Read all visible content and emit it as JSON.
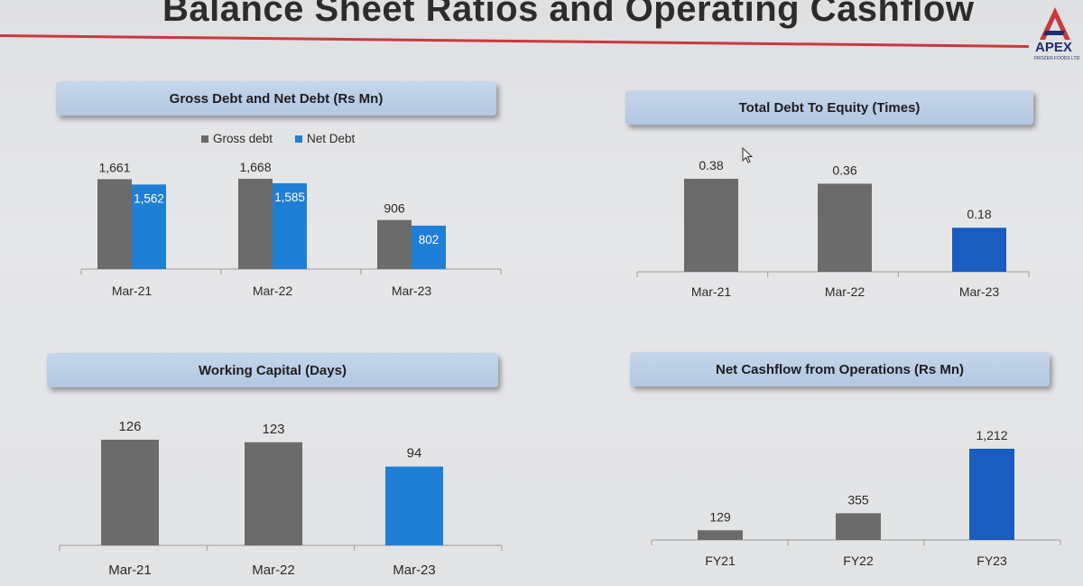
{
  "page_title": "Balance Sheet Ratios and Operating Cashflow",
  "logo": {
    "name": "APEX",
    "subtitle": "FROZEN FOODS LTD",
    "icon": "apex-triangle-logo-icon"
  },
  "colors": {
    "gray": "#6b6b6b",
    "blue": "#1f7fd4",
    "dark_blue": "#1a5cbf",
    "rule_red": "#c8393c"
  },
  "chart_data": [
    {
      "id": "gross-net-debt",
      "type": "bar",
      "title": "Gross Debt and Net Debt (Rs Mn)",
      "categories": [
        "Mar-21",
        "Mar-22",
        "Mar-23"
      ],
      "series": [
        {
          "name": "Gross debt",
          "values": [
            1661,
            1668,
            906
          ],
          "labels": [
            "1,661",
            "1,668",
            "906"
          ]
        },
        {
          "name": "Net Debt",
          "values": [
            1562,
            1585,
            802
          ],
          "labels": [
            "1,562",
            "1,585",
            "802"
          ]
        }
      ],
      "legend": "top",
      "ylim": [
        0,
        1700
      ]
    },
    {
      "id": "debt-to-equity",
      "type": "bar",
      "title": "Total Debt To Equity (Times)",
      "categories": [
        "Mar-21",
        "Mar-22",
        "Mar-23"
      ],
      "values": [
        0.38,
        0.36,
        0.18
      ],
      "labels": [
        "0.38",
        "0.36",
        "0.18"
      ],
      "ylim": [
        0,
        0.4
      ]
    },
    {
      "id": "working-capital",
      "type": "bar",
      "title": "Working Capital (Days)",
      "categories": [
        "Mar-21",
        "Mar-22",
        "Mar-23"
      ],
      "values": [
        126,
        123,
        94
      ],
      "labels": [
        "126",
        "123",
        "94"
      ],
      "ylim": [
        0,
        130
      ]
    },
    {
      "id": "net-cashflow",
      "type": "bar",
      "title": "Net Cashflow from Operations (Rs Mn)",
      "categories": [
        "FY21",
        "FY22",
        "FY23"
      ],
      "values": [
        129,
        355,
        1212
      ],
      "labels": [
        "129",
        "355",
        "1,212"
      ],
      "ylim": [
        0,
        1250
      ]
    }
  ]
}
